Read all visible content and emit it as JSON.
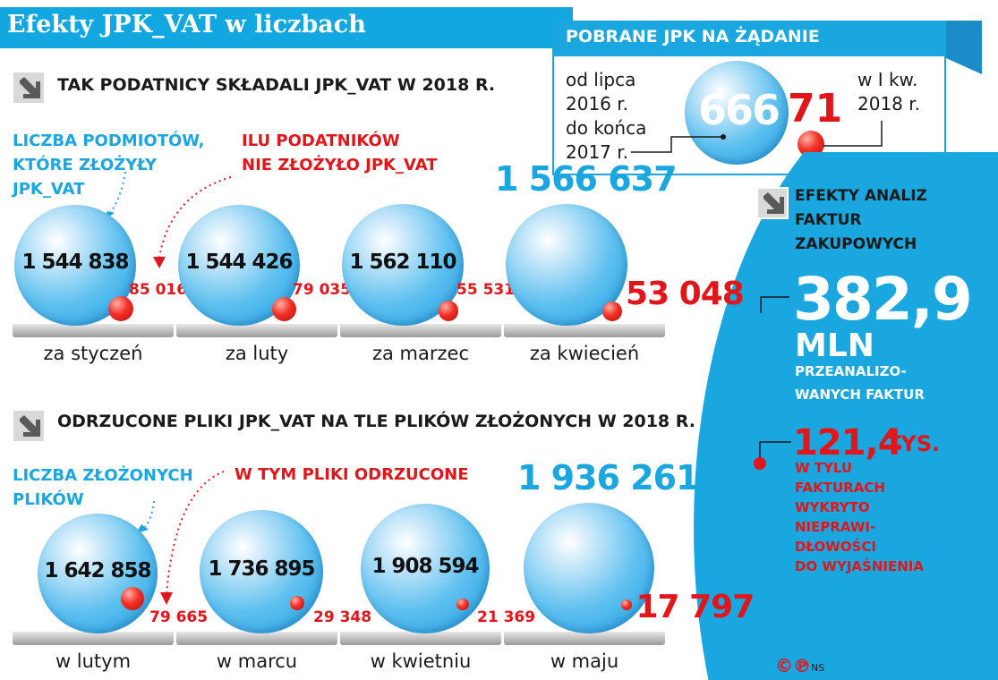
{
  "title": "Efekty JPK_VAT w liczbach",
  "colors": {
    "accent_blue": "#1aa6de",
    "accent_red": "#e0161b",
    "title_bar": "#12a7e0"
  },
  "section1": {
    "title": "Tak podatnicy składali JPK_VAT w 2018 r.",
    "label_blue": [
      "Liczba podmiotów,",
      "które złożyły",
      "JPK_VAT"
    ],
    "label_red": [
      "Ilu podatników",
      "nie złożyło JPK_VAT"
    ]
  },
  "section2": {
    "title": "Odrzucone pliki JPK_VAT na tle plików złożonych w 2018 r.",
    "label_blue": [
      "Liczba złożonych",
      "plików"
    ],
    "label_red": [
      "W tym pliki odrzucone"
    ]
  },
  "jpk_box": {
    "title": "Pobrane JPK na żądanie",
    "left_label": [
      "od lipca",
      "2016 r.",
      "do końca",
      "2017 r."
    ],
    "right_label": [
      "w I kw.",
      "2018 r."
    ],
    "left_value": "666",
    "right_value": "71"
  },
  "analysis": {
    "title": [
      "Efekty analiz",
      "faktur",
      "zakupowych"
    ],
    "value1": "382,9",
    "value1_unit": "mln",
    "value1_desc": [
      "przeanalizo-",
      "wanych faktur"
    ],
    "value2": "121,4",
    "value2_unit": "tys.",
    "value2_desc": [
      "w tylu",
      "fakturach",
      "wykryto",
      "nieprawi-",
      "dłowości",
      "do wyjaśnienia"
    ]
  },
  "credit": {
    "logo": "©℗",
    "author": "NS"
  },
  "chart_data": [
    {
      "type": "bubble",
      "title": "Tak podatnicy składali JPK_VAT w 2018 r.",
      "categories": [
        "za styczeń",
        "za luty",
        "za marzec",
        "za kwiecień"
      ],
      "series": [
        {
          "name": "Liczba podmiotów, które złożyły JPK_VAT",
          "values": [
            1544838,
            1544426,
            1562110,
            1566637
          ],
          "labels": [
            "1 544 838",
            "1 544 426",
            "1 562 110",
            "1 566 637"
          ]
        },
        {
          "name": "Ilu podatników nie złożyło JPK_VAT",
          "values": [
            85016,
            79035,
            55531,
            53048
          ],
          "labels": [
            "85 016",
            "79 035",
            "55 531",
            "53 048"
          ]
        }
      ]
    },
    {
      "type": "bubble",
      "title": "Odrzucone pliki JPK_VAT na tle plików złożonych w 2018 r.",
      "categories": [
        "w lutym",
        "w marcu",
        "w kwietniu",
        "w maju"
      ],
      "series": [
        {
          "name": "Liczba złożonych plików",
          "values": [
            1642858,
            1736895,
            1908594,
            1936261
          ],
          "labels": [
            "1 642 858",
            "1 736 895",
            "1 908 594",
            "1 936 261"
          ]
        },
        {
          "name": "W tym pliki odrzucone",
          "values": [
            79665,
            29348,
            21369,
            17797
          ],
          "labels": [
            "79 665",
            "29 348",
            "21 369",
            "17 797"
          ]
        }
      ]
    },
    {
      "type": "bubble",
      "title": "Pobrane JPK na żądanie",
      "categories": [
        "od lipca 2016 r. do końca 2017 r.",
        "w I kw. 2018 r."
      ],
      "values": [
        666,
        71
      ]
    }
  ]
}
